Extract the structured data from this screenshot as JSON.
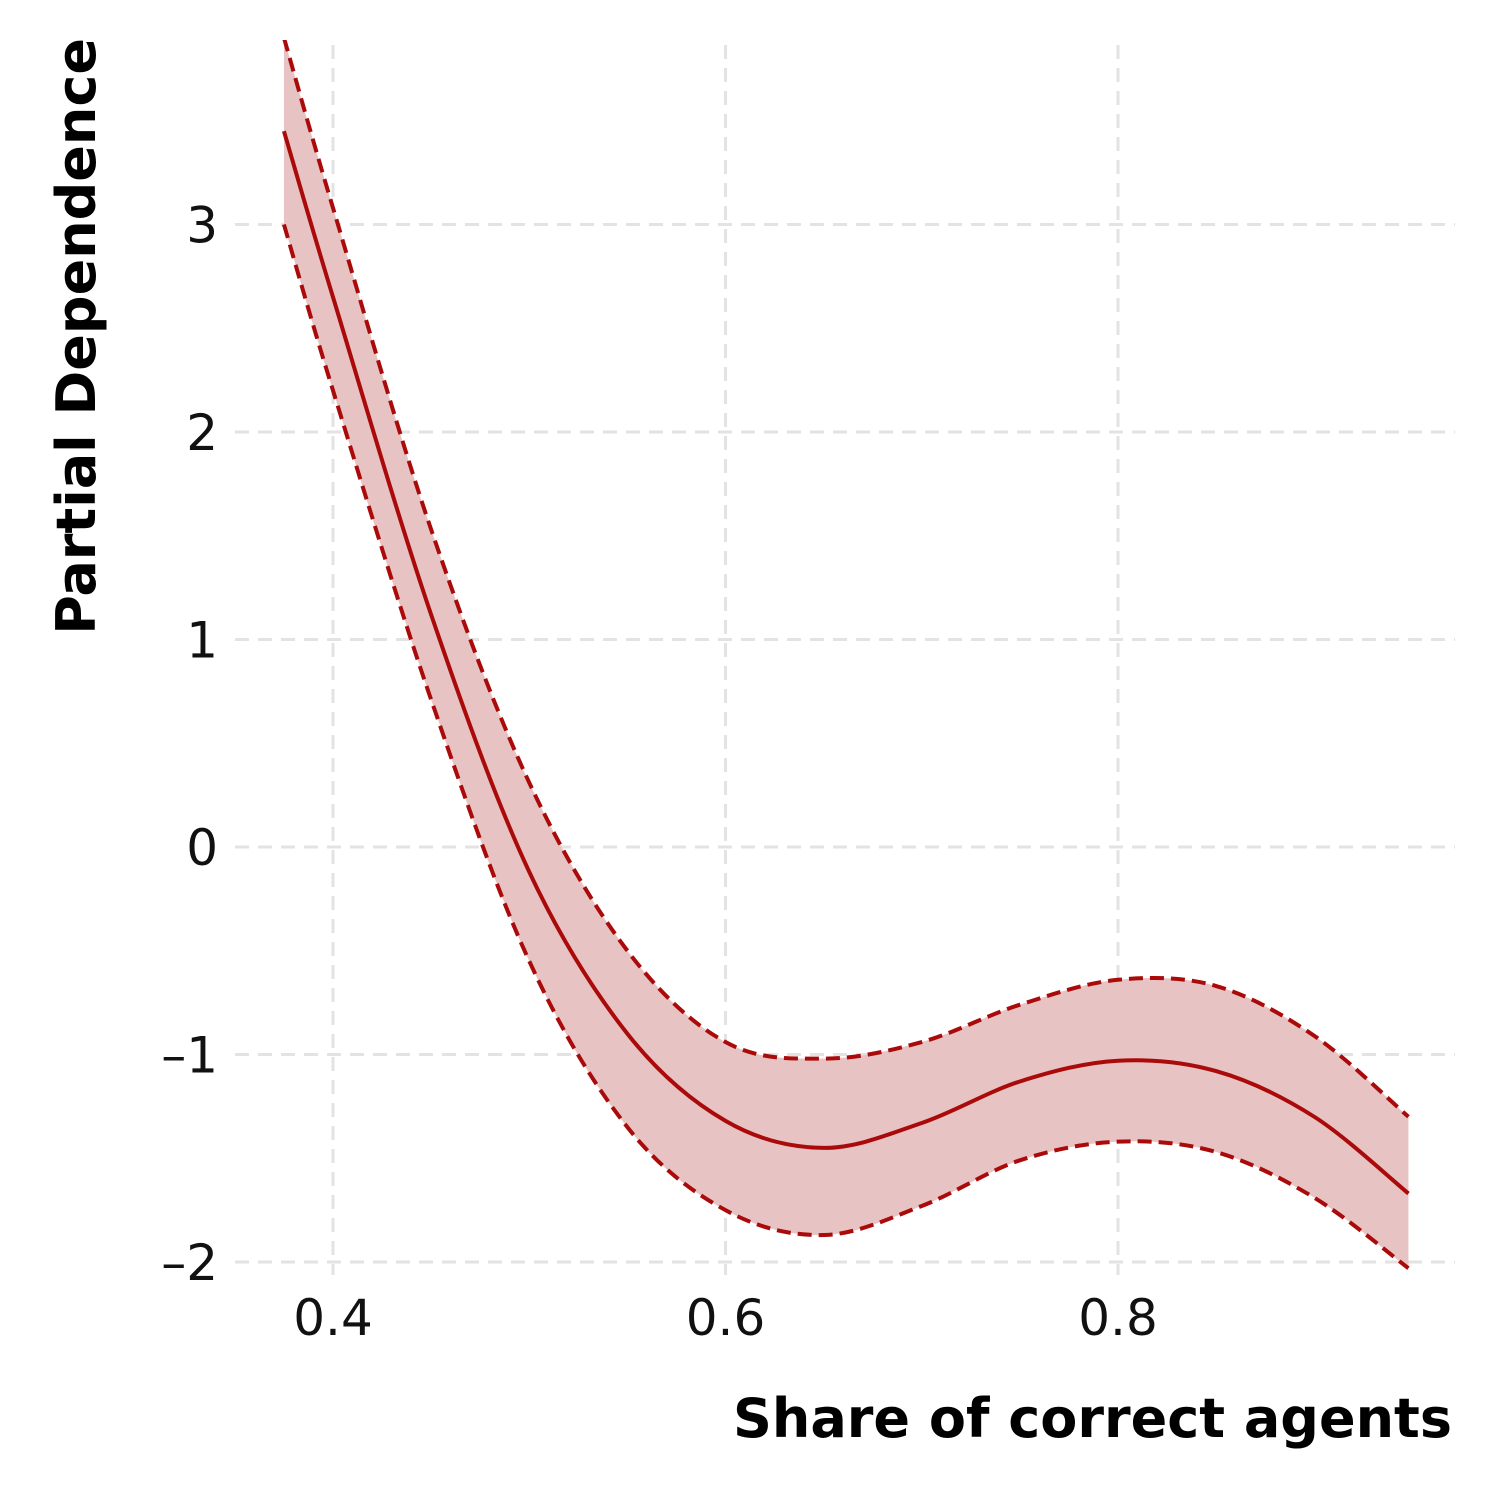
{
  "chart_data": {
    "type": "line",
    "title": "",
    "xlabel": "Share of correct agents",
    "ylabel": "Partial Dependence",
    "xlim": [
      0.35,
      0.96
    ],
    "ylim": [
      -2.0,
      3.8
    ],
    "x_ticks": [
      {
        "value": 0.4,
        "label": "0.4"
      },
      {
        "value": 0.6,
        "label": "0.6"
      },
      {
        "value": 0.8,
        "label": "0.8"
      }
    ],
    "y_ticks": [
      {
        "value": 3,
        "label": "3"
      },
      {
        "value": 2,
        "label": "2"
      },
      {
        "value": 1,
        "label": "1"
      },
      {
        "value": 0,
        "label": "0"
      },
      {
        "value": -1,
        "label": "–1"
      },
      {
        "value": -2,
        "label": "–2"
      }
    ],
    "grid": true,
    "legend": "none",
    "colors": {
      "line": "#aa0a0a",
      "band": "#e8c3c3",
      "grid": "#e3e3e3"
    },
    "x": [
      0.375,
      0.4,
      0.45,
      0.5,
      0.55,
      0.6,
      0.65,
      0.7,
      0.75,
      0.8,
      0.85,
      0.9,
      0.948
    ],
    "series": [
      {
        "role": "estimate",
        "values": [
          3.45,
          2.65,
          1.12,
          -0.12,
          -0.9,
          -1.32,
          -1.45,
          -1.33,
          -1.13,
          -1.03,
          -1.08,
          -1.3,
          -1.67
        ]
      },
      {
        "role": "upper",
        "values": [
          3.9,
          3.08,
          1.53,
          0.31,
          -0.5,
          -0.94,
          -1.02,
          -0.94,
          -0.76,
          -0.64,
          -0.67,
          -0.91,
          -1.3
        ]
      },
      {
        "role": "lower",
        "values": [
          3.0,
          2.2,
          0.71,
          -0.55,
          -1.35,
          -1.75,
          -1.87,
          -1.73,
          -1.51,
          -1.42,
          -1.47,
          -1.69,
          -2.03
        ]
      }
    ]
  }
}
